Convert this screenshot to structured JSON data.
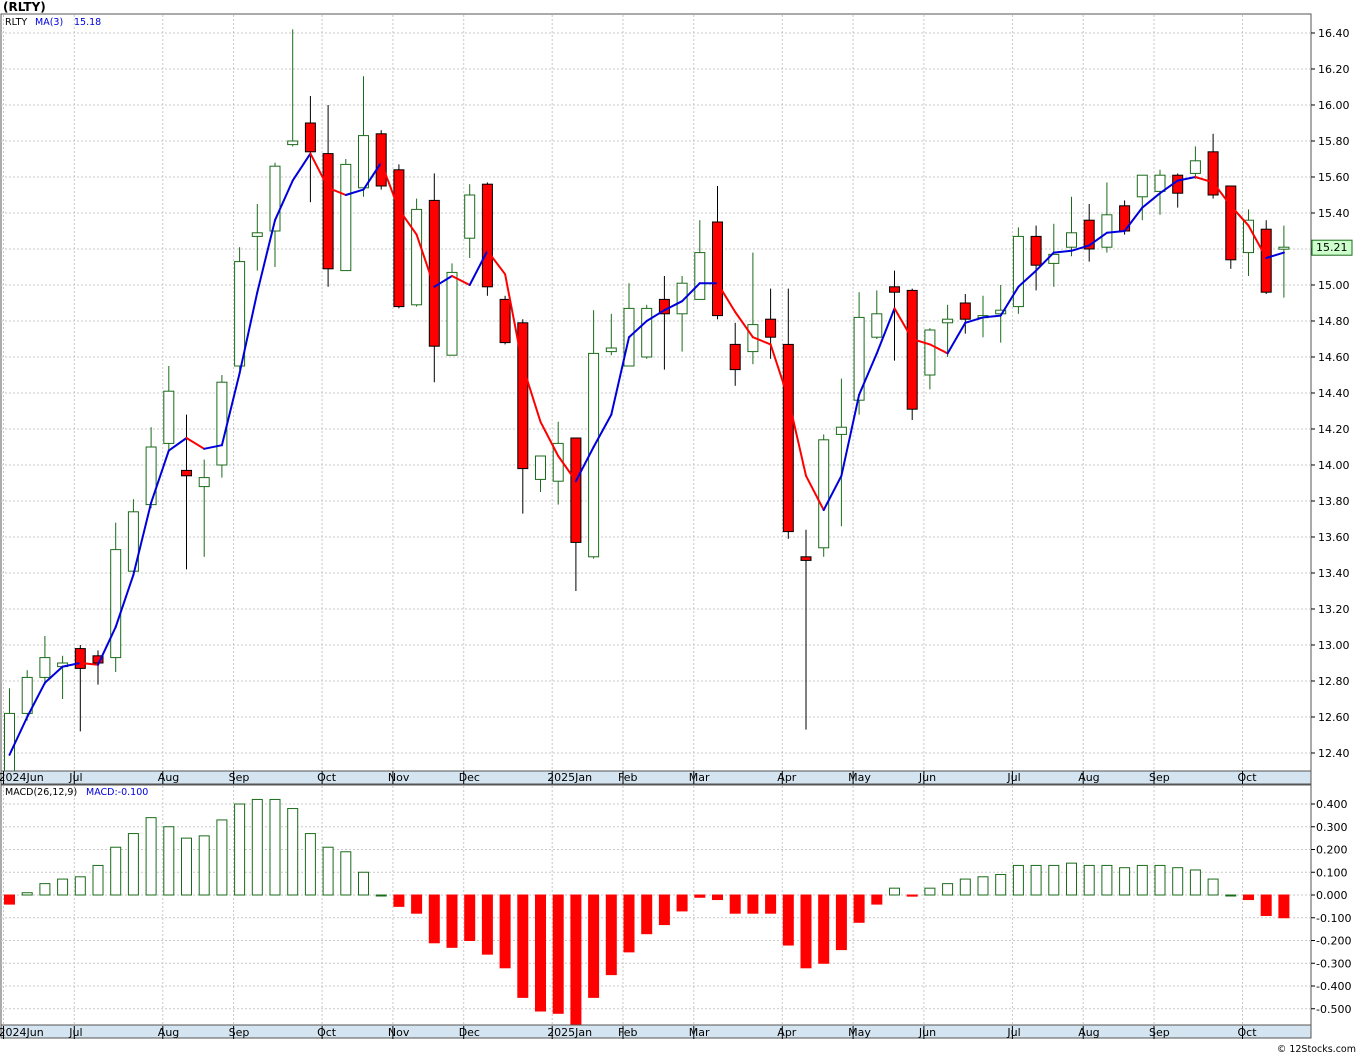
{
  "title": "(RLTY)",
  "footer": "© 12Stocks.com",
  "colors": {
    "up_border": "#1a6b1a",
    "down_fill": "#ff0000",
    "ma_up": "#0000dd",
    "ma_down": "#ff0000",
    "axis_strip": "#d4e4f0",
    "grid": "#c8c8c8",
    "last_price_bg": "#ccffcc"
  },
  "price_panel": {
    "legend_symbol": "RLTY",
    "legend_ma": "MA(3)",
    "legend_ma_value": "15.18",
    "last_price_label": "15.21"
  },
  "macd_panel": {
    "legend_macd": "MACD(26,12,9)",
    "legend_value": "MACD:-0.100"
  },
  "x_axis_labels": [
    "2024Jun",
    "Jul",
    "Aug",
    "Sep",
    "Oct",
    "Nov",
    "Dec",
    "2025Jan",
    "Feb",
    "Mar",
    "Apr",
    "May",
    "Jun",
    "Jul",
    "Aug",
    "Sep",
    "Oct"
  ],
  "macd_axis_labels": [
    "0.400",
    "0.300",
    "0.200",
    "0.100",
    "0.000",
    "-0.100",
    "-0.200",
    "-0.300",
    "-0.400",
    "-0.500"
  ],
  "chart_data": [
    {
      "type": "candlestick",
      "title": "(RLTY)",
      "ylim": [
        12.3,
        16.5
      ],
      "y_ticks": [
        12.4,
        12.6,
        12.8,
        13.0,
        13.2,
        13.4,
        13.6,
        13.8,
        14.0,
        14.2,
        14.4,
        14.6,
        14.8,
        15.0,
        15.2,
        15.4,
        15.6,
        15.8,
        16.0,
        16.2,
        16.4
      ],
      "months": [
        {
          "label": "2024Jun",
          "week": 0
        },
        {
          "label": "Jul",
          "week": 4
        },
        {
          "label": "Aug",
          "week": 9
        },
        {
          "label": "Sep",
          "week": 13
        },
        {
          "label": "Oct",
          "week": 18
        },
        {
          "label": "Nov",
          "week": 22
        },
        {
          "label": "Dec",
          "week": 26
        },
        {
          "label": "2025Jan",
          "week": 31
        },
        {
          "label": "Feb",
          "week": 35
        },
        {
          "label": "Mar",
          "week": 39
        },
        {
          "label": "Apr",
          "week": 44
        },
        {
          "label": "May",
          "week": 48
        },
        {
          "label": "Jun",
          "week": 52
        },
        {
          "label": "Jul",
          "week": 57
        },
        {
          "label": "Aug",
          "week": 61
        },
        {
          "label": "Sep",
          "week": 65
        },
        {
          "label": "Oct",
          "week": 70
        }
      ],
      "ohlc": [
        [
          12.3,
          12.76,
          12.25,
          12.62
        ],
        [
          12.62,
          12.86,
          12.58,
          12.82
        ],
        [
          12.82,
          13.05,
          12.78,
          12.93
        ],
        [
          12.88,
          12.94,
          12.7,
          12.9
        ],
        [
          12.98,
          13.0,
          12.52,
          12.87
        ],
        [
          12.94,
          12.97,
          12.78,
          12.9
        ],
        [
          12.93,
          13.68,
          12.85,
          13.53
        ],
        [
          13.41,
          13.81,
          13.4,
          13.74
        ],
        [
          13.78,
          14.21,
          13.76,
          14.1
        ],
        [
          14.12,
          14.55,
          14.08,
          14.41
        ],
        [
          13.97,
          14.28,
          13.42,
          13.94
        ],
        [
          13.88,
          14.03,
          13.49,
          13.93
        ],
        [
          14.0,
          14.5,
          13.93,
          14.46
        ],
        [
          14.55,
          15.21,
          14.53,
          15.13
        ],
        [
          15.27,
          15.45,
          15.08,
          15.29
        ],
        [
          15.3,
          15.68,
          15.1,
          15.66
        ],
        [
          15.78,
          16.42,
          15.77,
          15.8
        ],
        [
          15.9,
          16.05,
          15.46,
          15.74
        ],
        [
          15.73,
          16.0,
          14.99,
          15.09
        ],
        [
          15.08,
          15.7,
          15.08,
          15.67
        ],
        [
          15.54,
          16.16,
          15.49,
          15.83
        ],
        [
          15.84,
          15.86,
          15.53,
          15.55
        ],
        [
          15.64,
          15.67,
          14.87,
          14.88
        ],
        [
          14.89,
          15.48,
          14.88,
          15.42
        ],
        [
          15.47,
          15.62,
          14.46,
          14.66
        ],
        [
          14.61,
          15.12,
          14.61,
          15.07
        ],
        [
          15.26,
          15.56,
          15.15,
          15.5
        ],
        [
          15.56,
          15.57,
          14.94,
          14.99
        ],
        [
          14.92,
          14.94,
          14.67,
          14.68
        ],
        [
          14.79,
          14.81,
          13.73,
          13.98
        ],
        [
          13.92,
          14.05,
          13.85,
          14.05
        ],
        [
          13.91,
          14.24,
          13.78,
          14.12
        ],
        [
          14.15,
          14.15,
          13.3,
          13.57
        ],
        [
          13.49,
          14.86,
          13.48,
          14.62
        ],
        [
          14.63,
          14.84,
          14.61,
          14.65
        ],
        [
          14.55,
          15.01,
          14.55,
          14.87
        ],
        [
          14.6,
          14.89,
          14.59,
          14.87
        ],
        [
          14.92,
          15.05,
          14.53,
          14.84
        ],
        [
          14.84,
          15.05,
          14.63,
          15.01
        ],
        [
          14.92,
          15.36,
          14.92,
          15.18
        ],
        [
          15.35,
          15.55,
          14.81,
          14.83
        ],
        [
          14.67,
          14.79,
          14.44,
          14.53
        ],
        [
          14.63,
          15.18,
          14.56,
          14.78
        ],
        [
          14.81,
          14.98,
          14.59,
          14.71
        ],
        [
          14.67,
          14.98,
          13.59,
          13.63
        ],
        [
          13.49,
          13.64,
          12.53,
          13.47
        ],
        [
          13.54,
          14.17,
          13.49,
          14.14
        ],
        [
          14.17,
          14.48,
          13.66,
          14.21
        ],
        [
          14.36,
          14.96,
          14.28,
          14.82
        ],
        [
          14.71,
          14.97,
          14.7,
          14.84
        ],
        [
          14.99,
          15.08,
          14.58,
          14.96
        ],
        [
          14.97,
          14.98,
          14.25,
          14.31
        ],
        [
          14.5,
          14.76,
          14.42,
          14.75
        ],
        [
          14.79,
          14.89,
          14.6,
          14.81
        ],
        [
          14.9,
          14.95,
          14.73,
          14.81
        ],
        [
          14.83,
          14.94,
          14.71,
          14.83
        ],
        [
          14.84,
          15.0,
          14.68,
          14.86
        ],
        [
          14.88,
          15.32,
          14.84,
          15.27
        ],
        [
          15.27,
          15.33,
          14.97,
          15.11
        ],
        [
          15.12,
          15.34,
          14.99,
          15.17
        ],
        [
          15.21,
          15.49,
          15.16,
          15.29
        ],
        [
          15.36,
          15.45,
          15.13,
          15.2
        ],
        [
          15.21,
          15.57,
          15.18,
          15.39
        ],
        [
          15.44,
          15.47,
          15.28,
          15.3
        ],
        [
          15.49,
          15.61,
          15.36,
          15.61
        ],
        [
          15.52,
          15.64,
          15.39,
          15.61
        ],
        [
          15.61,
          15.62,
          15.43,
          15.51
        ],
        [
          15.62,
          15.77,
          15.59,
          15.69
        ],
        [
          15.74,
          15.84,
          15.48,
          15.5
        ],
        [
          15.55,
          15.55,
          15.09,
          15.14
        ],
        [
          15.18,
          15.42,
          15.05,
          15.36
        ],
        [
          15.31,
          15.36,
          14.95,
          14.96
        ],
        [
          15.2,
          15.33,
          14.93,
          15.21
        ]
      ],
      "ma3": [
        12.39,
        12.6,
        12.79,
        12.88,
        12.9,
        12.89,
        13.1,
        13.39,
        13.79,
        14.08,
        14.15,
        14.09,
        14.11,
        14.51,
        14.96,
        15.36,
        15.58,
        15.73,
        15.54,
        15.5,
        15.53,
        15.68,
        15.42,
        15.28,
        14.99,
        15.05,
        15.0,
        15.19,
        15.06,
        14.55,
        14.24,
        14.05,
        13.91,
        14.1,
        14.28,
        14.71,
        14.8,
        14.86,
        14.91,
        15.01,
        15.01,
        14.85,
        14.71,
        14.67,
        14.37,
        13.94,
        13.75,
        13.94,
        14.39,
        14.62,
        14.87,
        14.7,
        14.67,
        14.62,
        14.79,
        14.82,
        14.83,
        14.99,
        15.08,
        15.18,
        15.19,
        15.22,
        15.29,
        15.3,
        15.43,
        15.51,
        15.58,
        15.6,
        15.57,
        15.44,
        15.33,
        15.15,
        15.18
      ]
    },
    {
      "type": "bar",
      "title": "MACD(26,12,9)",
      "ylim": [
        -0.57,
        0.46
      ],
      "values": [
        -0.04,
        0.01,
        0.05,
        0.07,
        0.08,
        0.13,
        0.21,
        0.27,
        0.34,
        0.3,
        0.25,
        0.26,
        0.33,
        0.4,
        0.42,
        0.42,
        0.38,
        0.27,
        0.21,
        0.19,
        0.1,
        0.0,
        -0.05,
        -0.08,
        -0.21,
        -0.23,
        -0.2,
        -0.26,
        -0.32,
        -0.45,
        -0.51,
        -0.52,
        -0.57,
        -0.45,
        -0.35,
        -0.25,
        -0.17,
        -0.13,
        -0.07,
        -0.01,
        -0.02,
        -0.08,
        -0.08,
        -0.08,
        -0.22,
        -0.32,
        -0.3,
        -0.24,
        -0.12,
        -0.04,
        0.03,
        -0.005,
        0.03,
        0.05,
        0.07,
        0.08,
        0.09,
        0.13,
        0.13,
        0.13,
        0.14,
        0.13,
        0.13,
        0.12,
        0.13,
        0.13,
        0.12,
        0.11,
        0.07,
        0.0,
        -0.02,
        -0.09,
        -0.1
      ]
    }
  ]
}
